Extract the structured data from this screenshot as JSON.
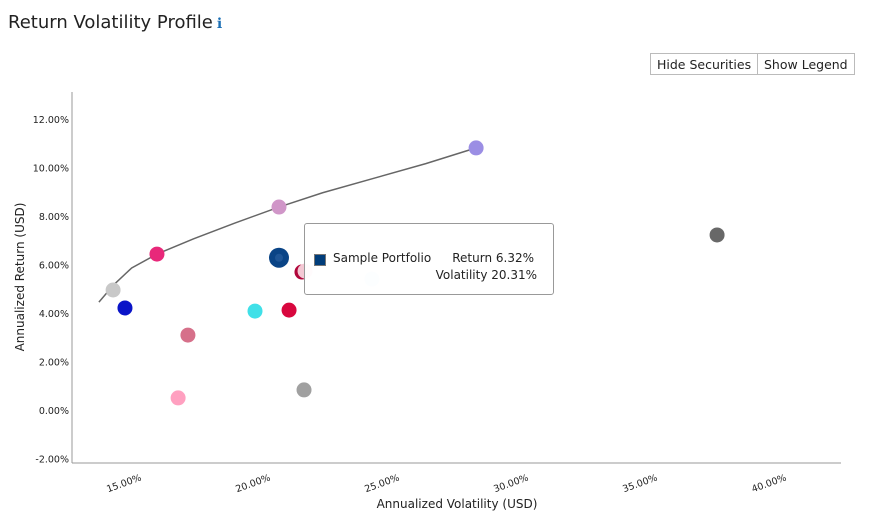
{
  "header": {
    "title": "Return Volatility Profile",
    "info_icon": "info-icon"
  },
  "buttons": {
    "hide_securities": "Hide Securities",
    "show_legend": "Show Legend"
  },
  "tooltip": {
    "name": "Sample Portfolio",
    "return_text": "Return 6.32%",
    "volatility_text": "Volatility 20.31%",
    "color": "#003d7a"
  },
  "chart_data": {
    "type": "scatter",
    "xlabel": "Annualized Volatility (USD)",
    "ylabel": "Annualized Return (USD)",
    "xlim": [
      12.3,
      42
    ],
    "ylim": [
      -2,
      12.8
    ],
    "xticks": [
      15,
      20,
      25,
      30,
      35,
      40
    ],
    "xtick_labels": [
      "15.00%",
      "20.00%",
      "25.00%",
      "30.00%",
      "35.00%",
      "40.00%"
    ],
    "yticks": [
      -2,
      0,
      2,
      4,
      6,
      8,
      10,
      12
    ],
    "ytick_labels": [
      "-2.00%",
      "0.00%",
      "2.00%",
      "4.00%",
      "6.00%",
      "8.00%",
      "10.00%",
      "12.00%"
    ],
    "grid": false,
    "frontier": [
      [
        13.33,
        4.49
      ],
      [
        13.9,
        5.2
      ],
      [
        14.6,
        5.9
      ],
      [
        15.58,
        6.47
      ],
      [
        17.0,
        7.1
      ],
      [
        18.6,
        7.75
      ],
      [
        20.31,
        8.41
      ],
      [
        22.0,
        9.0
      ],
      [
        24.0,
        9.6
      ],
      [
        26.0,
        10.2
      ],
      [
        27.95,
        10.85
      ]
    ],
    "points": [
      {
        "x": 13.88,
        "y": 4.99,
        "color": "#c8c8c8"
      },
      {
        "x": 14.34,
        "y": 4.25,
        "color": "#0a14c8"
      },
      {
        "x": 15.58,
        "y": 6.47,
        "color": "#e8287a"
      },
      {
        "x": 16.78,
        "y": 3.13,
        "color": "#d6708a"
      },
      {
        "x": 16.4,
        "y": 0.54,
        "color": "#ffa0c0"
      },
      {
        "x": 19.38,
        "y": 4.12,
        "color": "#40e0e8"
      },
      {
        "x": 20.31,
        "y": 8.41,
        "color": "#d096c8"
      },
      {
        "x": 20.7,
        "y": 4.16,
        "color": "#d8073e"
      },
      {
        "x": 21.2,
        "y": 5.73,
        "color": "#b0063a"
      },
      {
        "x": 21.32,
        "y": 5.77,
        "color": "#f4c8d4"
      },
      {
        "x": 21.28,
        "y": 0.87,
        "color": "#a0a0a0"
      },
      {
        "x": 23.91,
        "y": 5.44,
        "color": "#daeafc"
      },
      {
        "x": 27.95,
        "y": 10.85,
        "color": "#9b8ee4"
      },
      {
        "x": 37.29,
        "y": 7.26,
        "color": "#686868"
      }
    ],
    "portfolio": {
      "name": "Sample Portfolio",
      "x": 20.31,
      "y": 6.32,
      "color": "#0a4486"
    }
  }
}
